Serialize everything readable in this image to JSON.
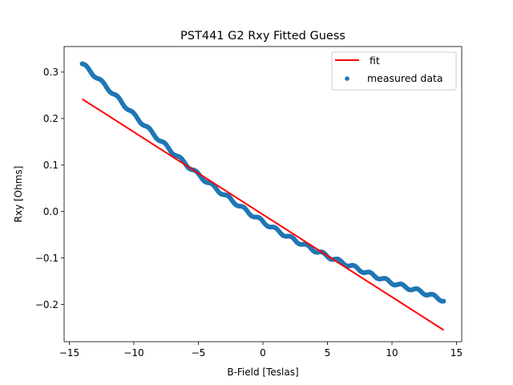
{
  "chart_data": {
    "type": "scatter",
    "title": "PST441 G2 Rxy Fitted Guess",
    "xlabel": "B-Field [Teslas]",
    "ylabel": "Rxy [Ohms]",
    "xlim": [
      -15.4,
      15.4
    ],
    "ylim": [
      -0.28,
      0.355
    ],
    "xticks": [
      -15,
      -10,
      -5,
      0,
      5,
      10,
      15
    ],
    "yticks": [
      -0.2,
      -0.1,
      0.0,
      0.1,
      0.2,
      0.3
    ],
    "legend_position": "top-right",
    "series": [
      {
        "name": "fit",
        "kind": "line",
        "color": "#ff0000",
        "x": [
          -14,
          14
        ],
        "y": [
          0.242,
          -0.255
        ]
      },
      {
        "name": "measured data",
        "kind": "scatter",
        "color": "#1f77b4",
        "x": [
          -14,
          -13,
          -12,
          -11,
          -10,
          -9,
          -8,
          -7,
          -6,
          -5,
          -4,
          -3,
          -2,
          -1,
          0,
          1,
          2,
          3,
          4,
          5,
          6,
          7,
          8,
          9,
          10,
          11,
          12,
          13,
          14
        ],
        "y": [
          0.318,
          0.292,
          0.265,
          0.237,
          0.208,
          0.181,
          0.154,
          0.128,
          0.103,
          0.079,
          0.057,
          0.036,
          0.016,
          -0.004,
          -0.022,
          -0.039,
          -0.055,
          -0.069,
          -0.083,
          -0.096,
          -0.108,
          -0.119,
          -0.131,
          -0.142,
          -0.153,
          -0.162,
          -0.17,
          -0.18,
          -0.191
        ]
      }
    ]
  }
}
